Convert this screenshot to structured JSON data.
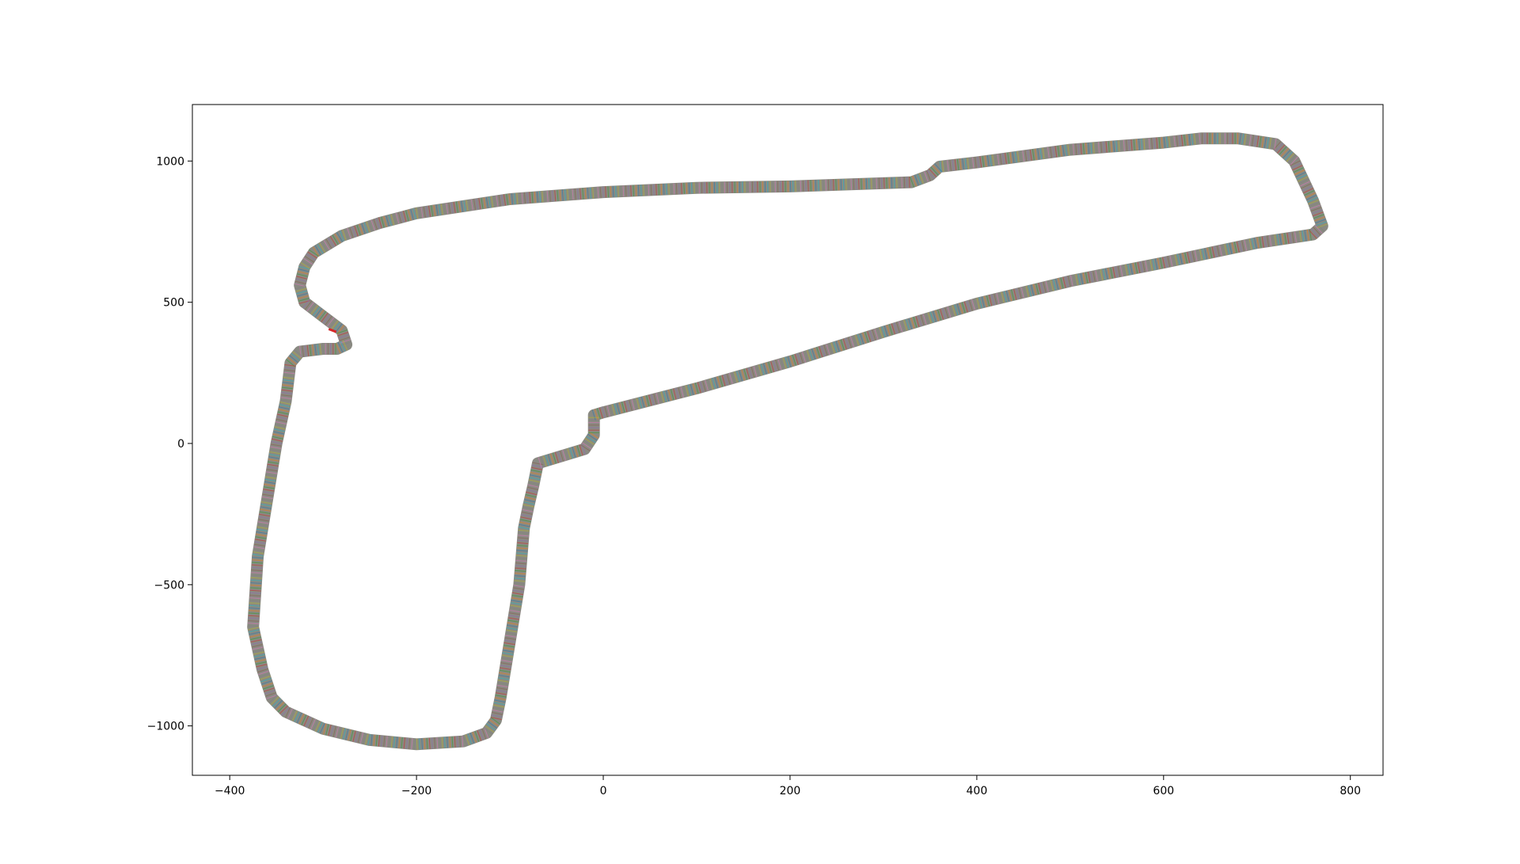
{
  "chart_data": {
    "type": "line",
    "title": "",
    "xlabel": "",
    "ylabel": "",
    "xlim": [
      -440,
      835
    ],
    "ylim": [
      -1175,
      1200
    ],
    "xticks": [
      -400,
      -200,
      0,
      200,
      400,
      600,
      800
    ],
    "yticks": [
      -1000,
      -500,
      0,
      500,
      1000
    ],
    "xtick_labels": [
      "−400",
      "−200",
      "0",
      "200",
      "400",
      "600",
      "800"
    ],
    "ytick_labels": [
      "−1000",
      "−500",
      "0",
      "500",
      "1000"
    ],
    "grid": false,
    "legend": "none",
    "track_colors": [
      "#1f77b4",
      "#ff7f0e",
      "#2ca02c",
      "#d62728",
      "#9467bd",
      "#8c564b",
      "#e377c2",
      "#7f7f7f",
      "#bcbd22",
      "#17becf"
    ],
    "track_base_color": "#8a8a82",
    "start_marker_color": "#d62728",
    "series": [
      {
        "x": [
          -10,
          0,
          100,
          200,
          300,
          400,
          500,
          600,
          700,
          760,
          770,
          760,
          740,
          720,
          680,
          640,
          600,
          500,
          400,
          360,
          350,
          330,
          200,
          100,
          0,
          -100,
          -200,
          -240,
          -280,
          -310,
          -320,
          -325,
          -320,
          -300,
          -280,
          -275,
          -285,
          -300,
          -325,
          -335,
          -340,
          -350,
          -360,
          -370,
          -375,
          -365,
          -355,
          -340,
          -300,
          -250,
          -200,
          -150,
          -125,
          -115,
          -110,
          -100,
          -90,
          -85,
          -80,
          -75,
          -70,
          -50,
          -20,
          -10,
          -10
        ],
        "y": [
          100,
          110,
          195,
          290,
          395,
          495,
          575,
          640,
          710,
          740,
          770,
          860,
          1000,
          1060,
          1080,
          1080,
          1065,
          1040,
          995,
          980,
          950,
          925,
          910,
          905,
          890,
          865,
          815,
          780,
          735,
          675,
          625,
          560,
          500,
          450,
          400,
          350,
          335,
          335,
          325,
          285,
          150,
          0,
          -200,
          -400,
          -650,
          -800,
          -900,
          -950,
          -1010,
          -1050,
          -1065,
          -1055,
          -1025,
          -980,
          -900,
          -700,
          -500,
          -300,
          -220,
          -150,
          -70,
          -50,
          -20,
          30,
          100
        ]
      }
    ]
  }
}
